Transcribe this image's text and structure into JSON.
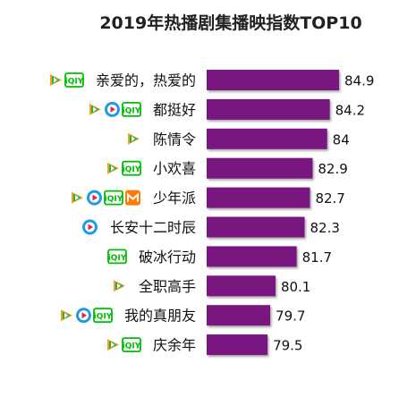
{
  "chart_data": {
    "type": "bar",
    "orientation": "horizontal",
    "title": "2019年热播剧集播映指数TOP10",
    "categories": [
      "亲爱的，热爱的",
      "都挺好",
      "陈情令",
      "小欢喜",
      "少年派",
      "长安十二时辰",
      "破冰行动",
      "全职高手",
      "我的真朋友",
      "庆余年"
    ],
    "values": [
      84.9,
      84.2,
      84,
      82.9,
      82.7,
      82.3,
      81.7,
      80.1,
      79.7,
      79.5
    ],
    "value_labels": [
      "84.9",
      "84.2",
      "84",
      "82.9",
      "82.7",
      "82.3",
      "81.7",
      "80.1",
      "79.7",
      "79.5"
    ],
    "platforms": [
      [
        "tencent",
        "iqiyi"
      ],
      [
        "tencent",
        "youku",
        "iqiyi"
      ],
      [
        "tencent"
      ],
      [
        "tencent",
        "iqiyi"
      ],
      [
        "tencent",
        "youku",
        "iqiyi",
        "mgtv"
      ],
      [
        "youku"
      ],
      [
        "iqiyi"
      ],
      [
        "tencent"
      ],
      [
        "tencent",
        "youku",
        "iqiyi"
      ],
      [
        "tencent",
        "iqiyi"
      ]
    ],
    "xlim": [
      75,
      85
    ],
    "grid": false,
    "legend": "none",
    "colors": {
      "bar": "#7a1380",
      "title": "#222222",
      "label": "#111111",
      "iqiyi": "#00be06",
      "tencent_green": "#1fb24a",
      "tencent_orange": "#f7a21b",
      "tencent_blue": "#2f8fd8",
      "youku": "#1e9be8",
      "mgtv": "#ff7a00"
    }
  }
}
